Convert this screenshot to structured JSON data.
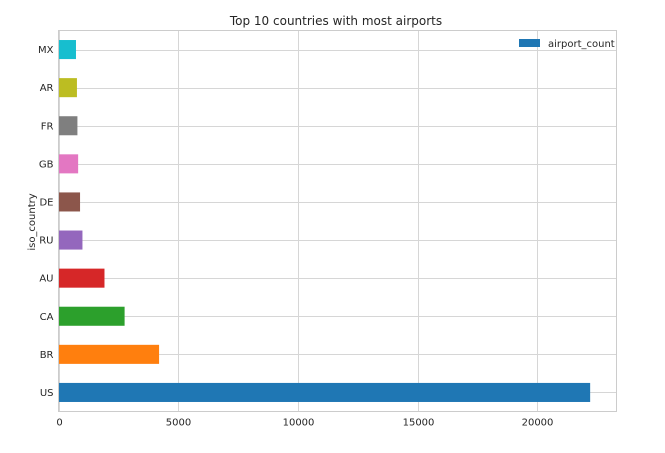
{
  "chart_data": {
    "type": "bar",
    "orientation": "horizontal",
    "title": "Top 10 countries with most airports",
    "xlabel": "",
    "ylabel": "iso_country",
    "categories": [
      "US",
      "BR",
      "CA",
      "AU",
      "RU",
      "DE",
      "GB",
      "FR",
      "AR",
      "MX"
    ],
    "values": [
      22200,
      4200,
      2760,
      1920,
      1000,
      900,
      820,
      790,
      770,
      730
    ],
    "bar_colors": [
      "#1f77b4",
      "#ff7f0e",
      "#2ca02c",
      "#d62728",
      "#9467bd",
      "#8c564b",
      "#e377c2",
      "#7f7f7f",
      "#bcbd22",
      "#17becf"
    ],
    "xlim": [
      0,
      23300
    ],
    "xticks": [
      0,
      5000,
      10000,
      15000,
      20000
    ],
    "xtick_labels": [
      "0",
      "5000",
      "10000",
      "15000",
      "20000"
    ],
    "grid": true,
    "legend": {
      "position": "top-right",
      "entries": [
        {
          "label": "airport_count",
          "color": "#1f77b4"
        }
      ]
    }
  }
}
